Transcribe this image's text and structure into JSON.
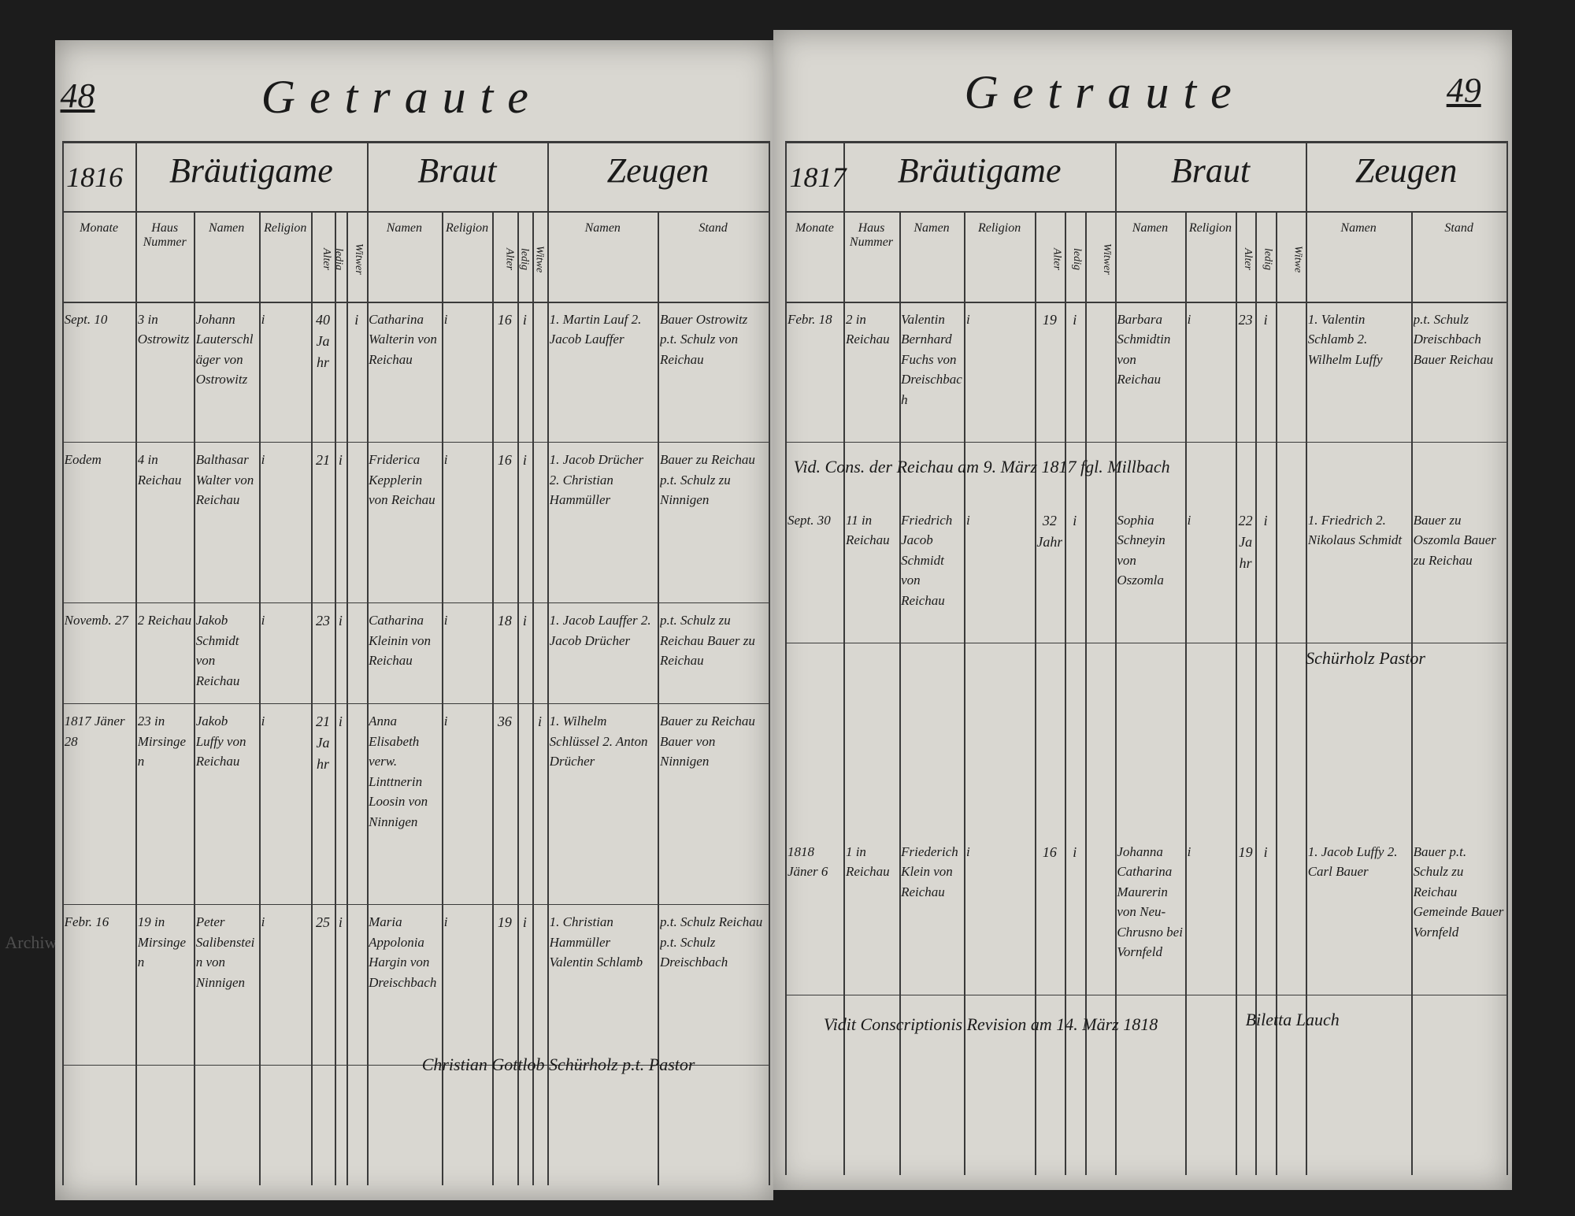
{
  "pages": [
    {
      "number": "48",
      "title": "Getraute",
      "year": "1816",
      "groups": [
        "Bräutigame",
        "Braut",
        "Zeugen"
      ],
      "columns": [
        "Monate",
        "Haus Nummer",
        "Namen",
        "Religion",
        "Alter",
        "ledig",
        "Witwer",
        "Namen",
        "Religion",
        "Alter",
        "ledig",
        "Witwe",
        "Namen",
        "Stand"
      ],
      "rows": [
        [
          "Sept. 10",
          "3 in Ostrowitz",
          "Johann Lauterschläger von Ostrowitz",
          "i",
          "40 Jahr",
          null,
          "i",
          "Catharina Walterin von Reichau",
          "i",
          "16",
          "i",
          null,
          "1. Martin Lauf 2. Jacob Lauffer",
          "Bauer Ostrowitz p.t. Schulz von Reichau"
        ],
        [
          "Eodem",
          "4 in Reichau",
          "Balthasar Walter von Reichau",
          "i",
          "21",
          "i",
          null,
          "Friderica Kepplerin von Reichau",
          "i",
          "16",
          "i",
          null,
          "1. Jacob Drücher 2. Christian Hammüller",
          "Bauer zu Reichau p.t. Schulz zu Ninnigen"
        ],
        [
          "Novemb. 27",
          "2 Reichau",
          "Jakob Schmidt von Reichau",
          "i",
          "23",
          "i",
          null,
          "Catharina Kleinin von Reichau",
          "i",
          "18",
          "i",
          null,
          "1. Jacob Lauffer 2. Jacob Drücher",
          "p.t. Schulz zu Reichau Bauer zu Reichau"
        ],
        [
          "1817 Jäner 28",
          "23 in Mirsingen",
          "Jakob Luffy von Reichau",
          "i",
          "21 Jahr",
          "i",
          null,
          "Anna Elisabeth verw. Linttnerin Loosin von Ninnigen",
          "i",
          "36",
          null,
          "i",
          "1. Wilhelm Schlüssel 2. Anton Drücher",
          "Bauer zu Reichau Bauer von Ninnigen"
        ],
        [
          "Febr. 16",
          "19 in Mirsingen",
          "Peter Salibenstein von Ninnigen",
          "i",
          "25",
          "i",
          null,
          "Maria Appolonia Hargin von Dreischbach",
          "i",
          "19",
          "i",
          null,
          "1. Christian Hammüller Valentin Schlamb",
          "p.t. Schulz Reichau p.t. Schulz Dreischbach"
        ]
      ],
      "notes": [
        "Christian Gottlob Schürholz p.t. Pastor"
      ]
    },
    {
      "number": "49",
      "title": "Getraute",
      "year": "1817",
      "groups": [
        "Bräutigame",
        "Braut",
        "Zeugen"
      ],
      "columns": [
        "Monate",
        "Haus Nummer",
        "Namen",
        "Religion",
        "Alter",
        "ledig",
        "Witwer",
        "Namen",
        "Religion",
        "Alter",
        "ledig",
        "Witwe",
        "Namen",
        "Stand"
      ],
      "rows": [
        [
          "Febr. 18",
          "2 in Reichau",
          "Valentin Bernhard Fuchs von Dreischbach",
          "i",
          "19",
          "i",
          null,
          "Barbara Schmidtin von Reichau",
          "i",
          "23",
          "i",
          null,
          "1. Valentin Schlamb 2. Wilhelm Luffy",
          "p.t. Schulz Dreischbach Bauer Reichau"
        ],
        [
          "Sept. 30",
          "11 in Reichau",
          "Friedrich Jacob Schmidt von Reichau",
          "i",
          "32 Jahr",
          "i",
          null,
          "Sophia Schneyin von Oszomla",
          "i",
          "22 Jahr",
          "i",
          null,
          "1. Friedrich 2. Nikolaus Schmidt",
          "Bauer zu Oszomla Bauer zu Reichau"
        ],
        [
          "1818 Jäner 6",
          "1 in Reichau",
          "Friederich Klein von Reichau",
          "i",
          "16",
          "i",
          null,
          "Johanna Catharina Maurerin von Neu-Chrusno bei Vornfeld",
          "i",
          "19",
          "i",
          null,
          "1. Jacob Luffy 2. Carl Bauer",
          "Bauer p.t. Schulz zu Reichau Gemeinde Bauer Vornfeld"
        ]
      ],
      "notes": [
        "Vid. Cons. der Reichau am 9. März 1817 fgl. Millbach",
        "Schürholz Pastor",
        "Vidit Conscriptionis Revision am 14. März 1818",
        "Biletta Lauch"
      ]
    }
  ],
  "watermarks": [
    "Archiwum Główne Akt Dawnych",
    "Archiwum Główne Akt Dawnych"
  ]
}
